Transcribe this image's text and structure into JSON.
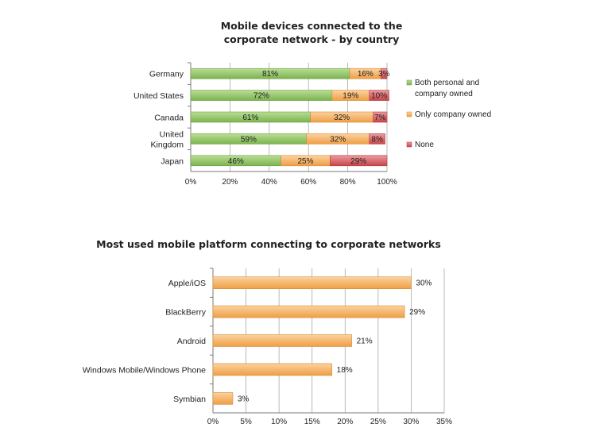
{
  "chart_data": [
    {
      "type": "bar",
      "orientation": "horizontal",
      "stacked": true,
      "title_lines": [
        "Mobile devices connected to the",
        "corporate network - by country"
      ],
      "categories": [
        [
          "Germany"
        ],
        [
          "United States"
        ],
        [
          "Canada"
        ],
        [
          "United",
          "Kingdom"
        ],
        [
          "Japan"
        ]
      ],
      "series": [
        {
          "name_lines": [
            "Both personal and",
            "company owned"
          ],
          "color": "#8cc060",
          "values": [
            81,
            72,
            61,
            59,
            46
          ]
        },
        {
          "name_lines": [
            "Only company owned"
          ],
          "color": "#f5b266",
          "values": [
            16,
            19,
            32,
            32,
            25
          ]
        },
        {
          "name_lines": [
            "None"
          ],
          "color": "#d9595f",
          "values": [
            3,
            10,
            7,
            8,
            29
          ]
        }
      ],
      "value_suffix": "%",
      "xlim": [
        0,
        100
      ],
      "xticks": [
        "0%",
        "20%",
        "40%",
        "60%",
        "80%",
        "100%"
      ],
      "gridlines": true,
      "legend": "right"
    },
    {
      "type": "bar",
      "orientation": "horizontal",
      "title_lines": [
        "Most used mobile platform connecting to corporate networks"
      ],
      "categories": [
        [
          "Apple/iOS"
        ],
        [
          "BlackBerry"
        ],
        [
          "Android"
        ],
        [
          "Windows Mobile/Windows Phone"
        ],
        [
          "Symbian"
        ]
      ],
      "values": [
        30,
        29,
        21,
        18,
        3
      ],
      "color": "#f5b266",
      "value_suffix": "%",
      "xlim": [
        0,
        35
      ],
      "xticks": [
        "0%",
        "5%",
        "10%",
        "15%",
        "20%",
        "25%",
        "30%",
        "35%"
      ],
      "gridlines": true
    }
  ]
}
